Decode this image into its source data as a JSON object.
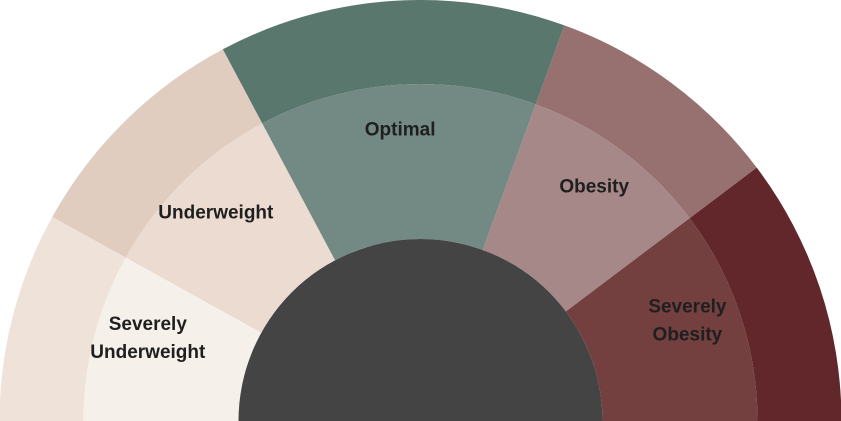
{
  "segments": [
    {
      "id": "severely-underweight",
      "label_lines": [
        "Severely",
        "Underweight"
      ],
      "outer_color": "#efe2d8",
      "inner_color": "#f6f0eb"
    },
    {
      "id": "underweight",
      "label_lines": [
        "Underweight"
      ],
      "outer_color": "#e1cdbf",
      "inner_color": "#ebdbd1"
    },
    {
      "id": "optimal",
      "label_lines": [
        "Optimal"
      ],
      "outer_color": "#5a776e",
      "inner_color": "#728a83"
    },
    {
      "id": "obesity",
      "label_lines": [
        "Obesity"
      ],
      "outer_color": "#96716f",
      "inner_color": "#a68888"
    },
    {
      "id": "severely-obesity",
      "label_lines": [
        "Severely",
        "Obesity"
      ],
      "outer_color": "#61272a",
      "inner_color": "#733f3f"
    }
  ],
  "center_color": "#444444"
}
